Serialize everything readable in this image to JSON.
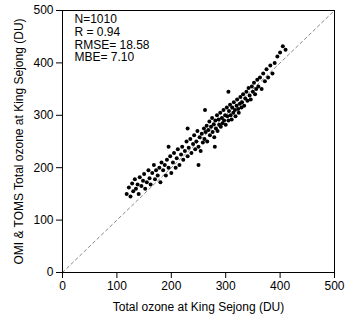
{
  "chart_data": {
    "type": "scatter",
    "x_label": "Total ozone at King Sejong (DU)",
    "y_label": "OMI & TOMS Total ozone at King Sejong (DU)",
    "annotations": [
      "N=1010",
      "R = 0.94",
      "RMSE= 18.58",
      "MBE= 7.10"
    ],
    "color": "#000000",
    "marker": "circle",
    "grid": false,
    "xlim": [
      0,
      500
    ],
    "ylim": [
      0,
      500
    ],
    "xticks": [
      0,
      100,
      200,
      300,
      400,
      500
    ],
    "yticks": [
      0,
      100,
      200,
      300,
      400,
      500
    ],
    "reference_line": {
      "x": [
        0,
        500
      ],
      "y": [
        0,
        500
      ],
      "line_style": "dashed",
      "color": "#888888"
    },
    "x": [
      118,
      122,
      125,
      128,
      130,
      133,
      135,
      138,
      140,
      142,
      145,
      148,
      150,
      152,
      155,
      158,
      160,
      162,
      165,
      168,
      170,
      172,
      175,
      178,
      180,
      182,
      185,
      188,
      190,
      192,
      195,
      198,
      200,
      203,
      205,
      208,
      210,
      212,
      215,
      218,
      220,
      222,
      225,
      228,
      230,
      232,
      235,
      237,
      240,
      242,
      244,
      246,
      248,
      250,
      252,
      254,
      256,
      258,
      260,
      261,
      263,
      265,
      266,
      268,
      270,
      271,
      273,
      275,
      276,
      278,
      279,
      281,
      282,
      284,
      285,
      287,
      288,
      290,
      291,
      293,
      294,
      296,
      297,
      299,
      300,
      302,
      303,
      305,
      306,
      308,
      309,
      311,
      312,
      314,
      315,
      317,
      318,
      320,
      321,
      323,
      324,
      326,
      327,
      329,
      330,
      332,
      334,
      336,
      338,
      340,
      342,
      344,
      346,
      348,
      350,
      352,
      354,
      356,
      358,
      360,
      363,
      366,
      369,
      372,
      375,
      378,
      382,
      386,
      390,
      395,
      400,
      405,
      410,
      262,
      230,
      280,
      305,
      195,
      250
    ],
    "y": [
      150,
      162,
      145,
      170,
      155,
      178,
      160,
      168,
      150,
      182,
      165,
      175,
      188,
      160,
      172,
      195,
      180,
      168,
      190,
      205,
      178,
      195,
      185,
      200,
      172,
      210,
      195,
      205,
      185,
      215,
      200,
      222,
      190,
      210,
      228,
      200,
      218,
      235,
      205,
      225,
      240,
      215,
      232,
      250,
      222,
      238,
      255,
      228,
      245,
      262,
      235,
      250,
      270,
      240,
      258,
      232,
      265,
      248,
      275,
      255,
      268,
      280,
      250,
      272,
      288,
      262,
      278,
      295,
      268,
      283,
      258,
      290,
      275,
      300,
      270,
      292,
      282,
      305,
      278,
      295,
      285,
      310,
      290,
      300,
      282,
      315,
      298,
      290,
      308,
      320,
      300,
      292,
      315,
      305,
      325,
      310,
      298,
      318,
      330,
      312,
      305,
      322,
      335,
      315,
      325,
      340,
      318,
      332,
      345,
      328,
      352,
      338,
      330,
      355,
      345,
      362,
      340,
      350,
      368,
      355,
      372,
      350,
      380,
      365,
      388,
      372,
      395,
      380,
      400,
      412,
      420,
      432,
      425,
      310,
      275,
      240,
      345,
      240,
      205
    ]
  }
}
